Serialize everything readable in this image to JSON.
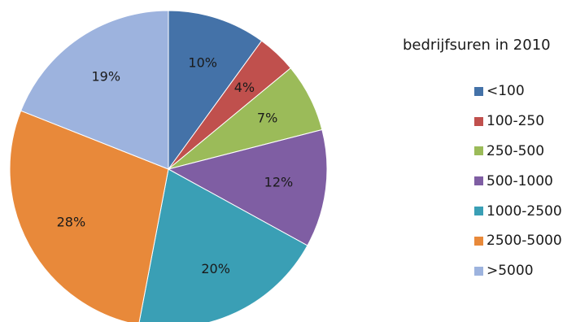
{
  "chart_data": {
    "type": "pie",
    "title": "",
    "legend_title": "bedrijfsuren in 2010",
    "legend_position": "right",
    "categories": [
      "<100",
      "100-250",
      "250-500",
      "500-1000",
      "1000-2500",
      "2500-5000",
      ">5000"
    ],
    "values": [
      10,
      4,
      7,
      12,
      20,
      28,
      19
    ],
    "labels": [
      "10%",
      "4%",
      "7%",
      "12%",
      "20%",
      "28%",
      "19%"
    ],
    "colors": [
      "#4472a8",
      "#c0504d",
      "#9bbb59",
      "#7f5ea3",
      "#3a9fb5",
      "#e8893a",
      "#9db3de"
    ],
    "start_angle_deg": 0,
    "direction": "clockwise"
  }
}
